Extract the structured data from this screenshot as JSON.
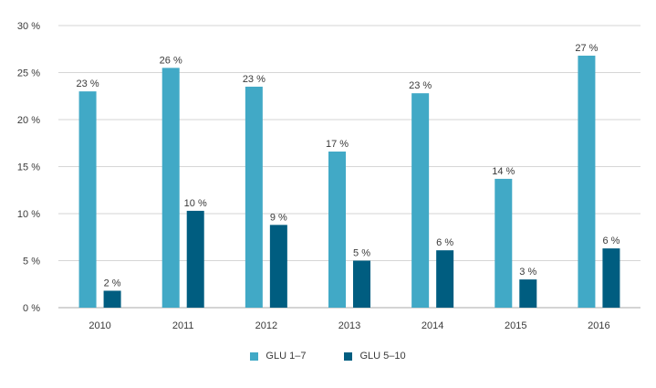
{
  "chart_data": {
    "type": "bar",
    "categories": [
      "2010",
      "2011",
      "2012",
      "2013",
      "2014",
      "2015",
      "2016"
    ],
    "series": [
      {
        "name": "GLU 1–7",
        "color": "#41a9c6",
        "values": [
          23.0,
          25.5,
          23.5,
          16.6,
          22.8,
          13.7,
          26.8
        ],
        "labels": [
          "23 %",
          "26 %",
          "23 %",
          "17 %",
          "23 %",
          "14 %",
          "27 %"
        ]
      },
      {
        "name": "GLU 5–10",
        "color": "#005d80",
        "values": [
          1.8,
          10.3,
          8.8,
          5.0,
          6.1,
          3.0,
          6.3
        ],
        "labels": [
          "2 %",
          "10 %",
          "9 %",
          "5 %",
          "6 %",
          "3 %",
          "6 %"
        ]
      }
    ],
    "yticks": [
      "0 %",
      "5 %",
      "10 %",
      "15 %",
      "20 %",
      "25 %",
      "30 %"
    ],
    "ytick_values": [
      0,
      5,
      10,
      15,
      20,
      25,
      30
    ],
    "ylim": [
      0,
      30
    ],
    "grid": true,
    "legend_position": "bottom-center",
    "title": "",
    "xlabel": "",
    "ylabel": ""
  }
}
